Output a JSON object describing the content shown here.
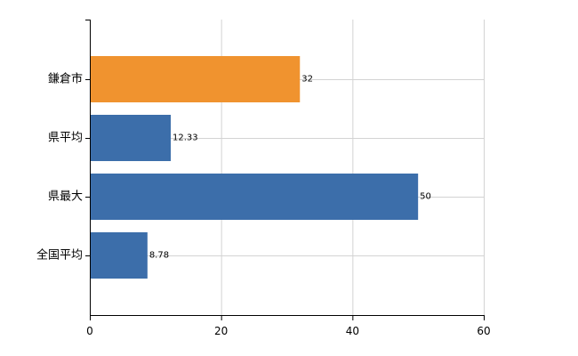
{
  "chart_data": {
    "type": "bar",
    "orientation": "horizontal",
    "categories": [
      "鎌倉市",
      "県平均",
      "県最大",
      "全国平均"
    ],
    "values": [
      32,
      12.33,
      50,
      8.78
    ],
    "value_labels": [
      "32",
      "12.33",
      "50",
      "8.78"
    ],
    "bar_colors": [
      "#f0932f",
      "#3c6eaa",
      "#3c6eaa",
      "#3c6eaa"
    ],
    "xlim": [
      0,
      60
    ],
    "xticks": [
      0,
      20,
      40,
      60
    ],
    "grid": true,
    "title": "",
    "xlabel": "",
    "ylabel": ""
  }
}
